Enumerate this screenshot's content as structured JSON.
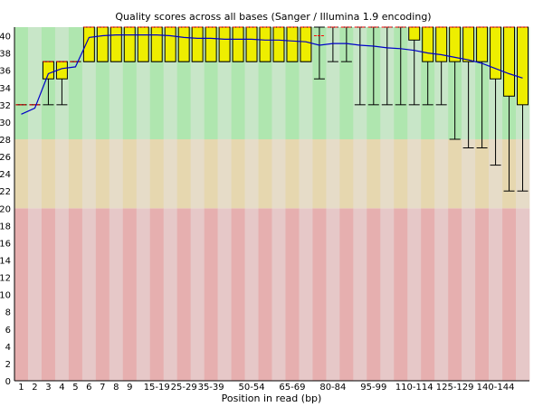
{
  "chart_data": {
    "type": "box",
    "title": "Quality scores across all bases (Sanger / Illumina 1.9 encoding)",
    "xlabel": "Position in read (bp)",
    "ylabel": "",
    "ylim": [
      0,
      41
    ],
    "yticks": [
      0,
      2,
      4,
      6,
      8,
      10,
      12,
      14,
      16,
      18,
      20,
      22,
      24,
      26,
      28,
      30,
      32,
      34,
      36,
      38,
      40
    ],
    "zones": [
      {
        "name": "poor",
        "from": 0,
        "to": 20,
        "color_a": "#e6afaf",
        "color_b": "#e6c8c8"
      },
      {
        "name": "reasonable",
        "from": 20,
        "to": 28,
        "color_a": "#e6d7af",
        "color_b": "#e6dcc8"
      },
      {
        "name": "good",
        "from": 28,
        "to": 41,
        "color_a": "#afe6af",
        "color_b": "#c8e6c8"
      }
    ],
    "categories": [
      "1",
      "2",
      "3",
      "4",
      "5",
      "6",
      "7",
      "8",
      "9",
      "10-14",
      "15-19",
      "20-24",
      "25-29",
      "30-34",
      "35-39",
      "40-44",
      "45-49",
      "50-54",
      "55-59",
      "60-64",
      "65-69",
      "70-74",
      "75-79",
      "80-84",
      "85-89",
      "90-94",
      "95-99",
      "100-104",
      "105-109",
      "110-114",
      "115-119",
      "120-124",
      "125-129",
      "130-134",
      "135-139",
      "140-144",
      "145-149",
      "150-151"
    ],
    "xticklabels_shown": [
      "1",
      "2",
      "3",
      "4",
      "5",
      "6",
      "7",
      "8",
      "9",
      "15-19",
      "25-29",
      "35-39",
      "50-54",
      "65-69",
      "80-84",
      "95-99",
      "110-114",
      "125-129",
      "140-144"
    ],
    "series": [
      {
        "name": "whisker_low",
        "values": [
          32,
          32,
          32,
          32,
          37,
          37,
          37,
          37,
          37,
          37,
          37,
          37,
          37,
          37,
          37,
          37,
          37,
          37,
          37,
          37,
          37,
          37,
          35,
          37,
          37,
          32,
          32,
          32,
          32,
          32,
          32,
          32,
          28,
          27,
          27,
          25,
          22,
          22
        ]
      },
      {
        "name": "q1",
        "values": [
          32,
          32,
          35,
          35,
          37,
          37,
          37,
          37,
          37,
          37,
          37,
          37,
          37,
          37,
          37,
          37,
          37,
          37,
          37,
          37,
          37,
          37,
          41,
          41,
          41,
          41,
          41,
          41,
          41,
          39.5,
          37,
          37,
          37,
          37,
          37,
          35,
          33,
          32
        ]
      },
      {
        "name": "median",
        "values": [
          32,
          32,
          37,
          37,
          37,
          41,
          41,
          41,
          41,
          41,
          41,
          41,
          41,
          41,
          41,
          41,
          41,
          41,
          41,
          41,
          41,
          41,
          40,
          41,
          41,
          41,
          41,
          41,
          41,
          41,
          41,
          41,
          41,
          41,
          41,
          41,
          41,
          41
        ]
      },
      {
        "name": "q3",
        "values": [
          32,
          32,
          37,
          37,
          37,
          41,
          41,
          41,
          41,
          41,
          41,
          41,
          41,
          41,
          41,
          41,
          41,
          41,
          41,
          41,
          41,
          41,
          41,
          41,
          41,
          41,
          41,
          41,
          41,
          41,
          41,
          41,
          41,
          41,
          41,
          41,
          41,
          41
        ]
      },
      {
        "name": "whisker_high",
        "values": [
          32,
          32,
          37,
          37,
          37,
          41,
          41,
          41,
          41,
          41,
          41,
          41,
          41,
          41,
          41,
          41,
          41,
          41,
          41,
          41,
          41,
          41,
          41,
          41,
          41,
          41,
          41,
          41,
          41,
          41,
          41,
          41,
          41,
          41,
          41,
          41,
          41,
          41
        ]
      },
      {
        "name": "mean",
        "values": [
          30.9,
          31.6,
          35.6,
          36.2,
          36.4,
          39.8,
          40.0,
          40.1,
          40.1,
          40.1,
          40.1,
          40.0,
          39.8,
          39.7,
          39.7,
          39.6,
          39.6,
          39.6,
          39.5,
          39.5,
          39.4,
          39.3,
          38.9,
          39.1,
          39.1,
          38.9,
          38.8,
          38.6,
          38.5,
          38.3,
          38.0,
          37.8,
          37.5,
          37.2,
          36.8,
          36.2,
          35.6,
          35.1
        ]
      }
    ],
    "colors": {
      "box": "#eeee00",
      "box_edge": "#000000",
      "median": "#ff0000",
      "mean": "#0000c8",
      "whisker": "#000000",
      "axis": "#000000"
    }
  }
}
